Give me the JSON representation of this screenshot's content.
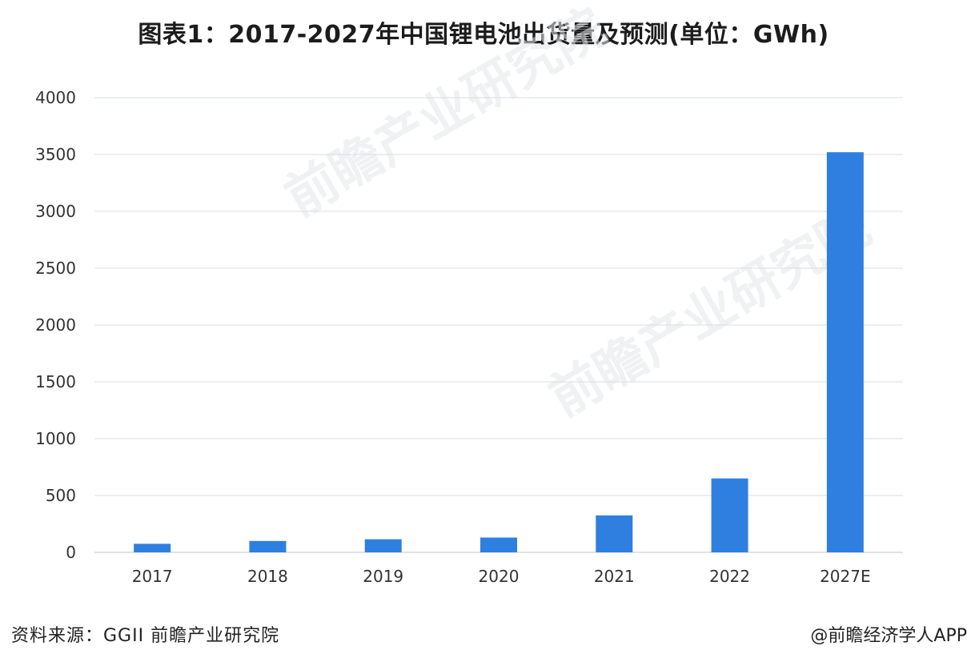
{
  "title": "图表1：2017-2027年中国锂电池出货量及预测(单位：GWh)",
  "source": "资料来源：GGII 前瞻产业研究院",
  "credit": "@前瞻经济学人APP",
  "watermark": "前瞻产业研究院",
  "colors": {
    "bar": "#2f7fe0",
    "grid": "#d9dde3",
    "axis": "#bfc4ca",
    "tick_text": "#333333"
  },
  "chart_data": {
    "type": "bar",
    "title": "图表1：2017-2027年中国锂电池出货量及预测(单位：GWh)",
    "categories": [
      "2017",
      "2018",
      "2019",
      "2020",
      "2021",
      "2022",
      "2027E"
    ],
    "values": [
      75,
      100,
      115,
      130,
      325,
      650,
      3520
    ],
    "ylim": [
      0,
      4000
    ],
    "yticks": [
      0,
      500,
      1000,
      1500,
      2000,
      2500,
      3000,
      3500,
      4000
    ],
    "xlabel": "",
    "ylabel": "",
    "grid": true,
    "legend": "none"
  }
}
